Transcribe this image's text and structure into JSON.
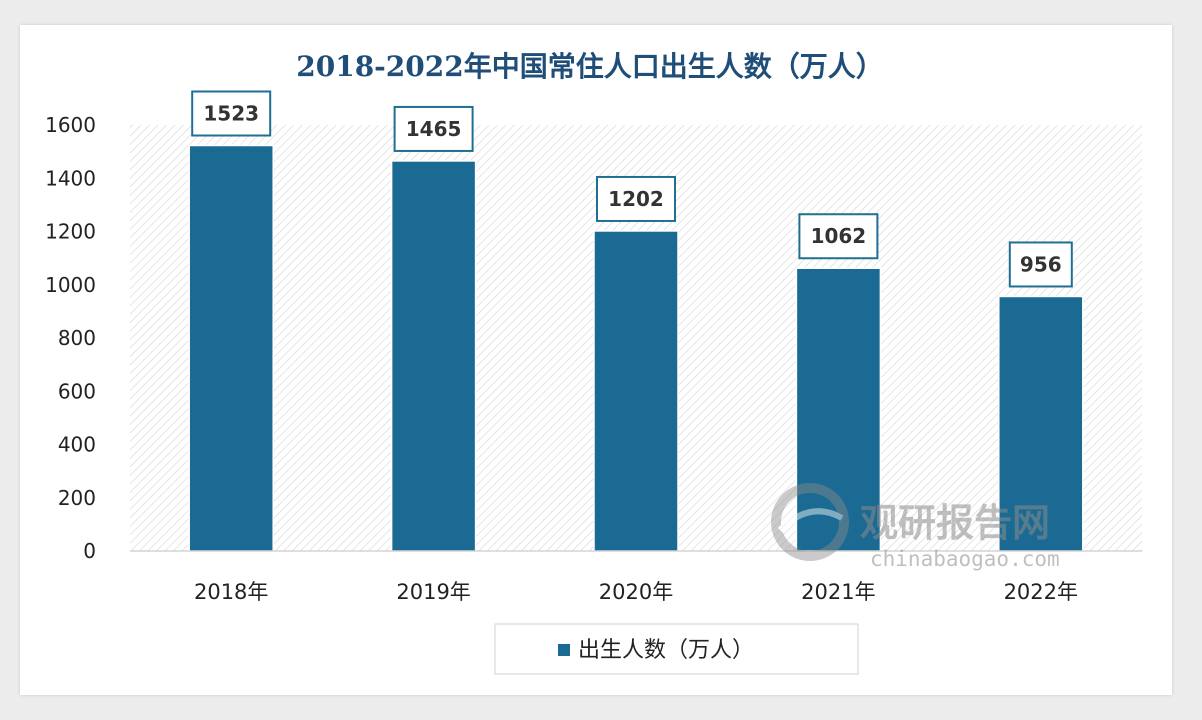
{
  "chart_data": {
    "type": "bar",
    "title": "2018-2022年中国常住人口出生人数（万人）",
    "categories": [
      "2018年",
      "2019年",
      "2020年",
      "2021年",
      "2022年"
    ],
    "series": [
      {
        "name": "出生人数（万人）",
        "values": [
          1523,
          1465,
          1202,
          1062,
          956
        ]
      }
    ],
    "data_labels": [
      "1523",
      "1465",
      "1202",
      "1062",
      "956"
    ],
    "yticks": [
      0,
      200,
      400,
      600,
      800,
      1000,
      1200,
      1400,
      1600
    ],
    "ylim": [
      0,
      1600
    ],
    "xlabel": "",
    "ylabel": "",
    "legend": {
      "position": "bottom",
      "label": "出生人数（万人）"
    },
    "colors": {
      "bar": "#1a6a93",
      "title": "#1f4e79",
      "label_border": "#1f6f93"
    }
  },
  "watermark": {
    "brand": "观研报告网",
    "site": "chinabaogao.com"
  }
}
